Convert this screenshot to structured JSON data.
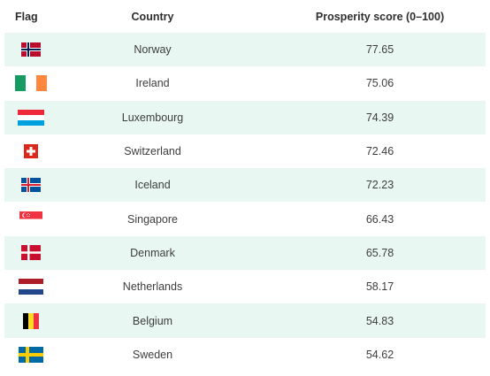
{
  "table": {
    "headers": {
      "flag": "Flag",
      "country": "Country",
      "score": "Prosperity score (0–100)"
    },
    "rows": [
      {
        "flag_icon": "norway-flag-icon",
        "country": "Norway",
        "score": "77.65"
      },
      {
        "flag_icon": "ireland-flag-icon",
        "country": "Ireland",
        "score": "75.06"
      },
      {
        "flag_icon": "luxembourg-flag-icon",
        "country": "Luxembourg",
        "score": "74.39"
      },
      {
        "flag_icon": "switzerland-flag-icon",
        "country": "Switzerland",
        "score": "72.46"
      },
      {
        "flag_icon": "iceland-flag-icon",
        "country": "Iceland",
        "score": "72.23"
      },
      {
        "flag_icon": "singapore-flag-icon",
        "country": "Singapore",
        "score": "66.43"
      },
      {
        "flag_icon": "denmark-flag-icon",
        "country": "Denmark",
        "score": "65.78"
      },
      {
        "flag_icon": "netherlands-flag-icon",
        "country": "Netherlands",
        "score": "58.17"
      },
      {
        "flag_icon": "belgium-flag-icon",
        "country": "Belgium",
        "score": "54.83"
      },
      {
        "flag_icon": "sweden-flag-icon",
        "country": "Sweden",
        "score": "54.62"
      }
    ],
    "colors": {
      "alt_row_bg": "#e9f7f3",
      "text": "#3d3d3d"
    }
  }
}
